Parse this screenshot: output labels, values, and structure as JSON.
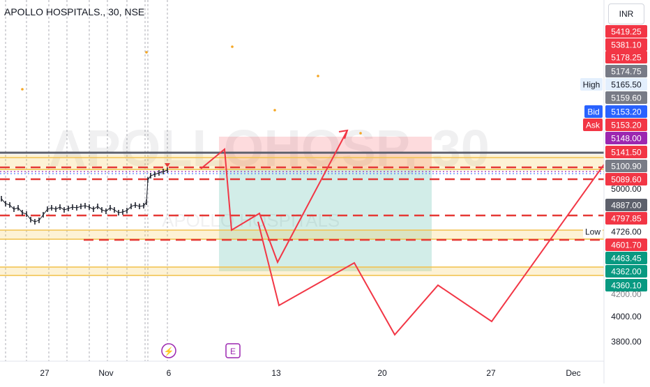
{
  "header": {
    "title": "APOLLO HOSPITALS., 30, NSE",
    "currency": "INR",
    "watermark_symbol": "APOLLOHOSP, 30",
    "watermark_name": "APOLLO HOSPITALS"
  },
  "colors": {
    "red": "#f23645",
    "dark_red": "#e53935",
    "green": "#089981",
    "gray": "#787b86",
    "dark_gray": "#5d606b",
    "purple": "#9c27b0",
    "blue": "#2962ff",
    "orange": "#f5a623",
    "gold_line": "#f2c14e",
    "sky": "#e3effd"
  },
  "chart_data": {
    "type": "line",
    "x_ticks": [
      "27",
      "Nov",
      "6",
      "13",
      "20",
      "27",
      "Dec"
    ],
    "y_ticks": [
      "5000.00",
      "4200.00",
      "4000.00",
      "3800.00"
    ],
    "price_labels": [
      {
        "value": 5419.25,
        "text": "5419.25",
        "style": "red"
      },
      {
        "value": 5381.1,
        "text": "5381.10",
        "style": "red"
      },
      {
        "value": 5178.25,
        "text": "5178.25",
        "style": "red"
      },
      {
        "value": 5174.75,
        "text": "5174.75",
        "style": "gray"
      },
      {
        "value": 5165.5,
        "text": "5165.50",
        "style": "sky",
        "tag": "High"
      },
      {
        "value": 5159.6,
        "text": "5159.60",
        "style": "gray"
      },
      {
        "value": 5153.2,
        "text": "5153.20",
        "style": "blue",
        "tag": "Bid"
      },
      {
        "value": 5153.2,
        "text": "5153.20",
        "style": "red",
        "tag": "Ask"
      },
      {
        "value": 5148.0,
        "text": "5148.00",
        "style": "purple"
      },
      {
        "value": 5141.5,
        "text": "5141.50",
        "style": "red"
      },
      {
        "value": 5100.9,
        "text": "5100.90",
        "style": "gray"
      },
      {
        "value": 5089.6,
        "text": "5089.60",
        "style": "red"
      },
      {
        "value": 4887.0,
        "text": "4887.00",
        "style": "darkgray"
      },
      {
        "value": 4797.85,
        "text": "4797.85",
        "style": "red"
      },
      {
        "value": 4726.0,
        "text": "4726.00",
        "style": "plain",
        "tag": "Low"
      },
      {
        "value": 4601.7,
        "text": "4601.70",
        "style": "red"
      },
      {
        "value": 4463.45,
        "text": "4463.45",
        "style": "green"
      },
      {
        "value": 4362.0,
        "text": "4362.00",
        "style": "green"
      },
      {
        "value": 4360.1,
        "text": "4360.10",
        "style": "green"
      }
    ],
    "event_icons": [
      "⚡",
      "E"
    ],
    "position_tool": {
      "entry": 5120,
      "stop": 5250,
      "target": 4400
    }
  }
}
